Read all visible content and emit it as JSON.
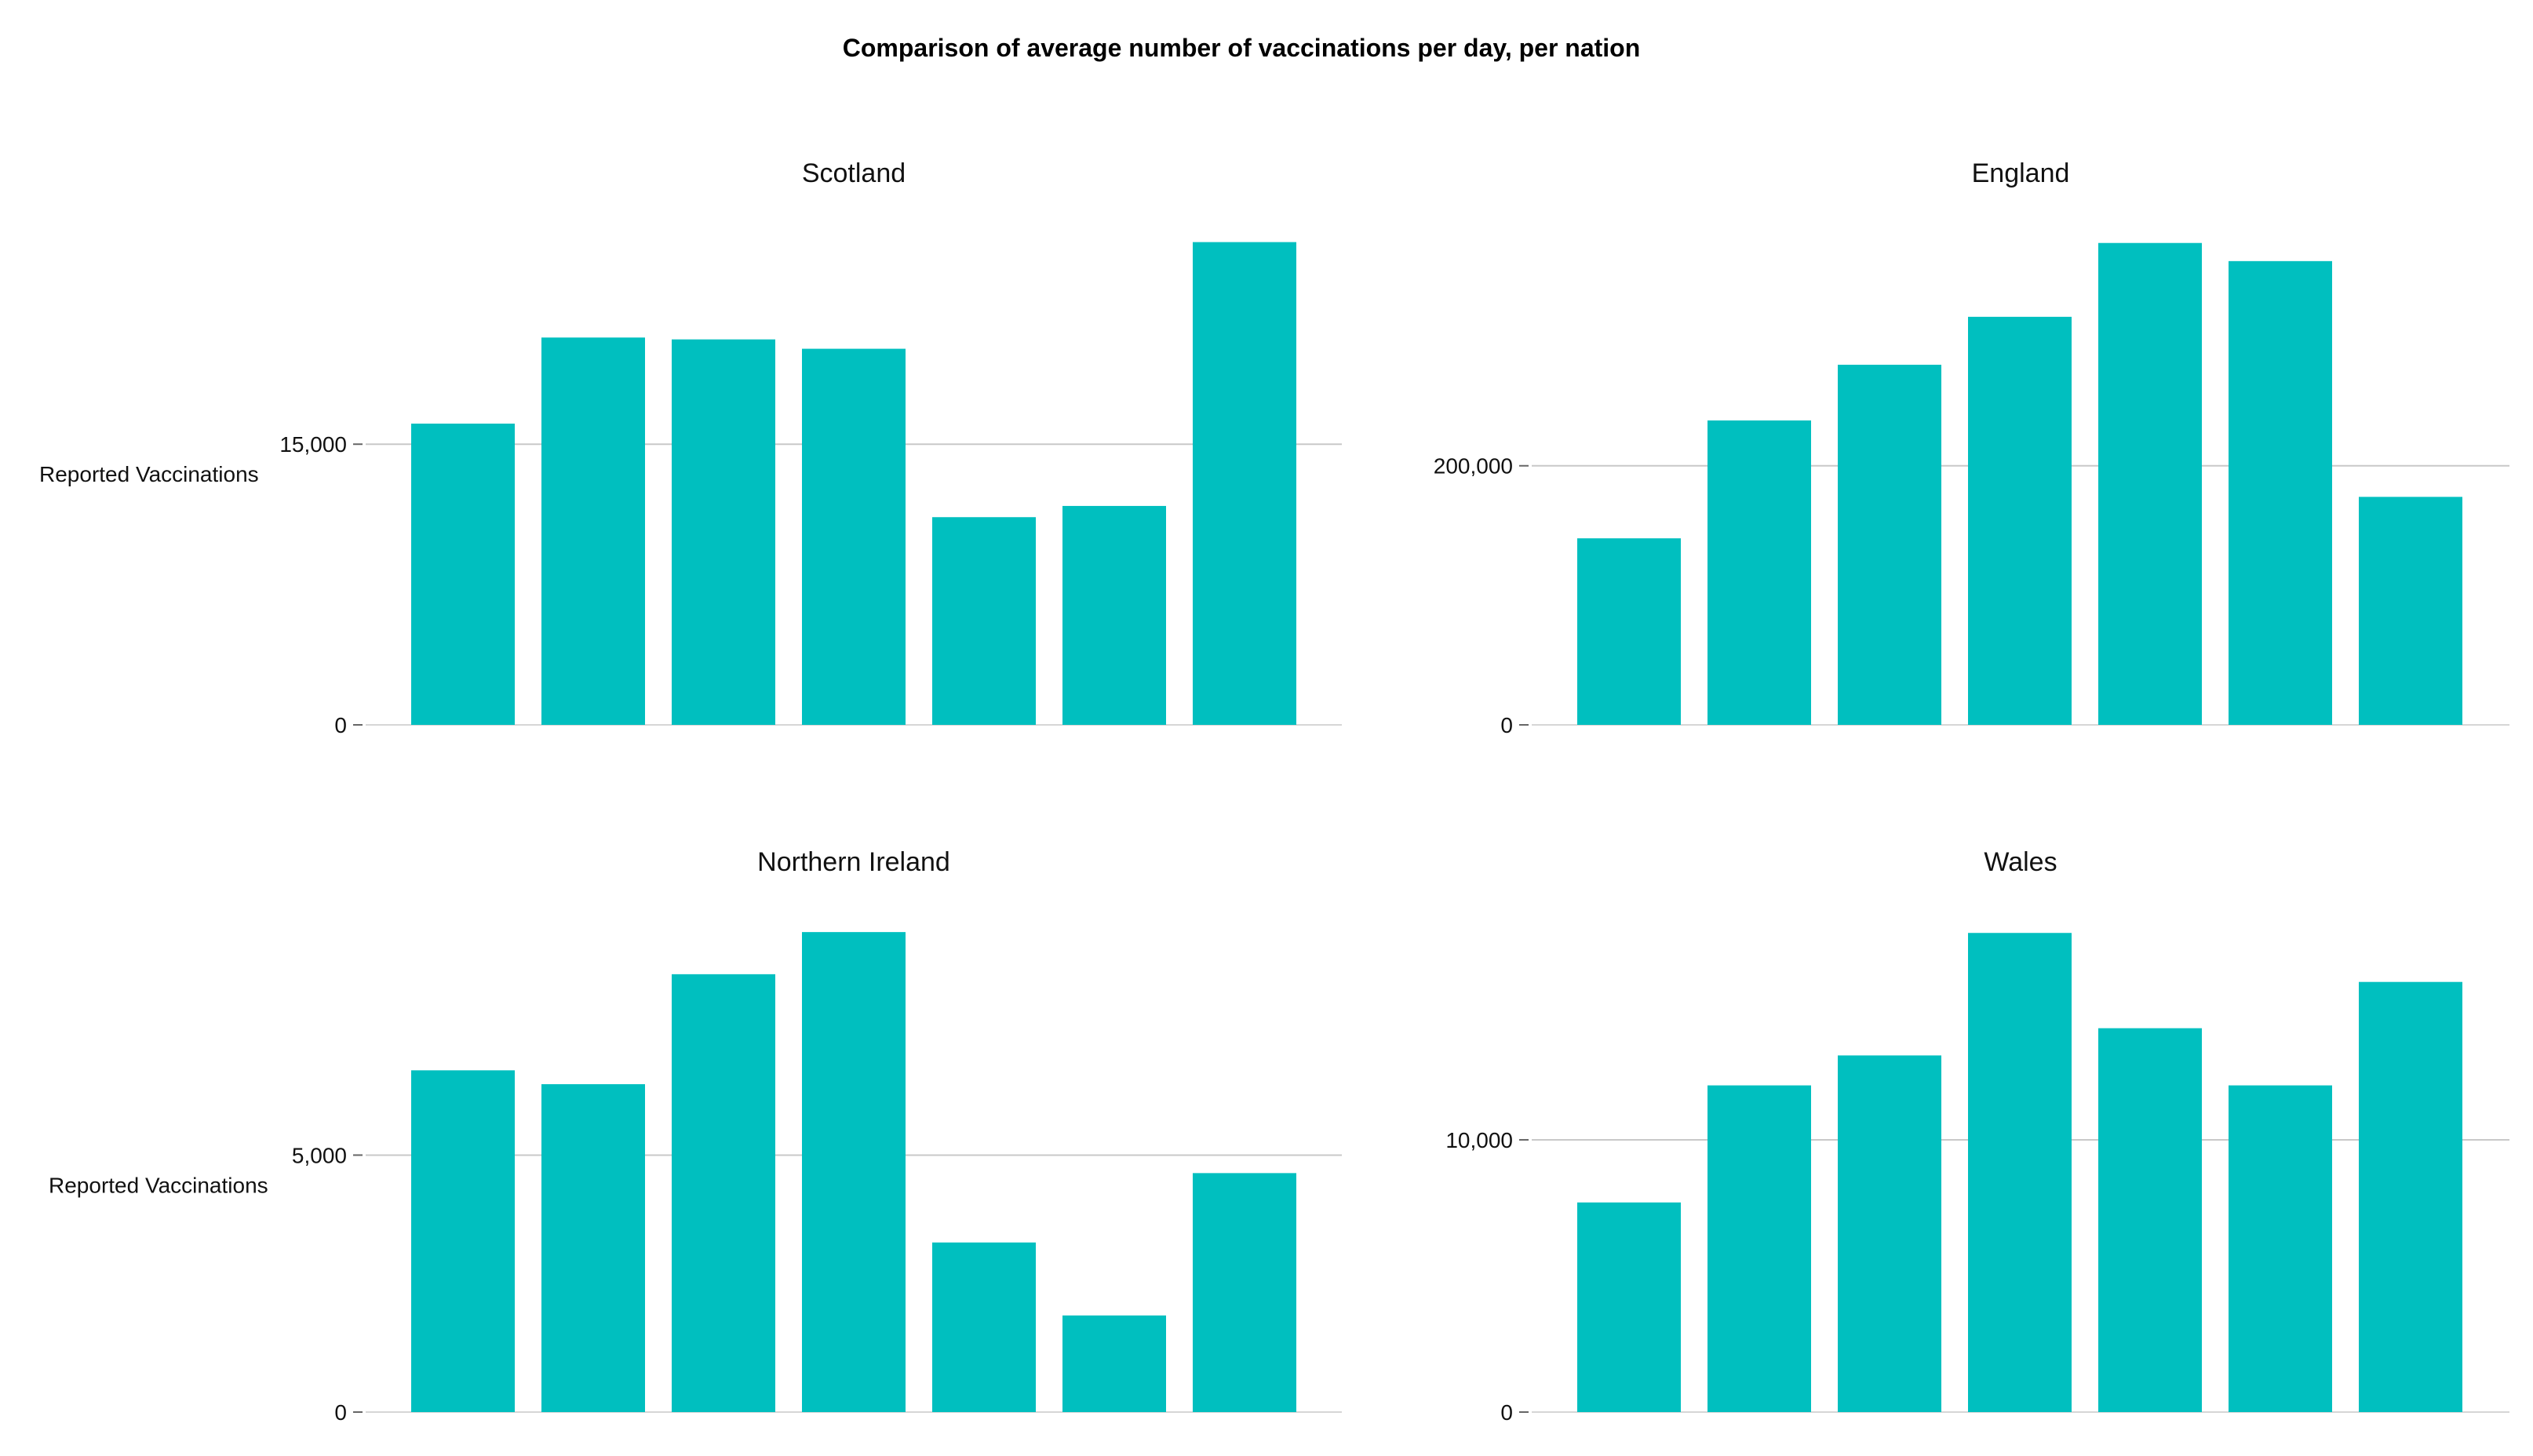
{
  "title": "Comparison of average number of vaccinations per day, per nation",
  "colors": {
    "bar": "#00bfbf",
    "grid": "#c8c8c8",
    "tick": "#666666"
  },
  "chart_data": [
    {
      "type": "bar",
      "title": "Scotland",
      "ylabel": "Reported Vaccinations",
      "values": [
        16100,
        20700,
        20600,
        20100,
        11100,
        11700,
        25800
      ],
      "ylim": [
        0,
        27000
      ],
      "yticks": [
        0,
        15000
      ],
      "ytick_labels": [
        "0",
        "15,000"
      ]
    },
    {
      "type": "bar",
      "title": "England",
      "ylabel": "",
      "values": [
        144000,
        235000,
        278000,
        315000,
        372000,
        358000,
        176000
      ],
      "ylim": [
        0,
        390000
      ],
      "yticks": [
        0,
        200000
      ],
      "ytick_labels": [
        "0",
        "200,000"
      ]
    },
    {
      "type": "bar",
      "title": "Northern Ireland",
      "ylabel": "Reported Vaccinations",
      "values": [
        6650,
        6380,
        8520,
        9340,
        3300,
        1880,
        4650
      ],
      "ylim": [
        0,
        9800
      ],
      "yticks": [
        0,
        5000
      ],
      "ytick_labels": [
        "0",
        "5,000"
      ]
    },
    {
      "type": "bar",
      "title": "Wales",
      "ylabel": "",
      "values": [
        7700,
        12000,
        13100,
        17600,
        14100,
        12000,
        15800
      ],
      "ylim": [
        0,
        18500
      ],
      "yticks": [
        0,
        10000
      ],
      "ytick_labels": [
        "0",
        "10,000"
      ]
    }
  ]
}
